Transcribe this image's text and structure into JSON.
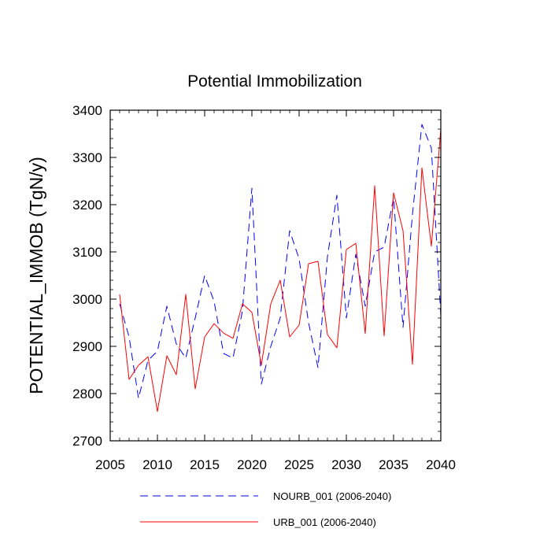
{
  "chart_data": {
    "type": "line",
    "title": "Potential Immobilization",
    "xlabel": "",
    "ylabel": "POTENTIAL_IMMOB  (TgN/y)",
    "xlim": [
      2005,
      2040
    ],
    "ylim": [
      2700,
      3400
    ],
    "xticks": [
      2005,
      2010,
      2015,
      2020,
      2025,
      2030,
      2035,
      2040
    ],
    "yticks": [
      2700,
      2800,
      2900,
      3000,
      3100,
      3200,
      3300,
      3400
    ],
    "grid": false,
    "legend": "bottom",
    "x": [
      2006,
      2007,
      2008,
      2009,
      2010,
      2011,
      2012,
      2013,
      2014,
      2015,
      2016,
      2017,
      2018,
      2019,
      2020,
      2021,
      2022,
      2023,
      2024,
      2025,
      2026,
      2027,
      2028,
      2029,
      2030,
      2031,
      2032,
      2033,
      2034,
      2035,
      2036,
      2037,
      2038,
      2039,
      2040
    ],
    "series": [
      {
        "name": "NOURB_001 (2006-2040)",
        "color": "#0000ff",
        "dash": "dashed",
        "values": [
          2990,
          2920,
          2790,
          2870,
          2890,
          2985,
          2905,
          2875,
          2960,
          3050,
          2995,
          2885,
          2875,
          2975,
          3235,
          2820,
          2900,
          2960,
          3145,
          3085,
          2950,
          2855,
          3090,
          3220,
          2960,
          3095,
          2985,
          3100,
          3110,
          3215,
          2940,
          3180,
          3370,
          3320,
          2965
        ]
      },
      {
        "name": "URB_001 (2006-2040)",
        "color": "#ff0000",
        "dash": "solid",
        "values": [
          3010,
          2830,
          2860,
          2878,
          2762,
          2880,
          2840,
          3010,
          2810,
          2920,
          2948,
          2928,
          2917,
          2990,
          2972,
          2860,
          2990,
          3040,
          2920,
          2945,
          3075,
          3080,
          2925,
          2897,
          3105,
          3118,
          2927,
          3240,
          2922,
          3225,
          3145,
          2862,
          3278,
          3112,
          3360
        ]
      }
    ]
  }
}
